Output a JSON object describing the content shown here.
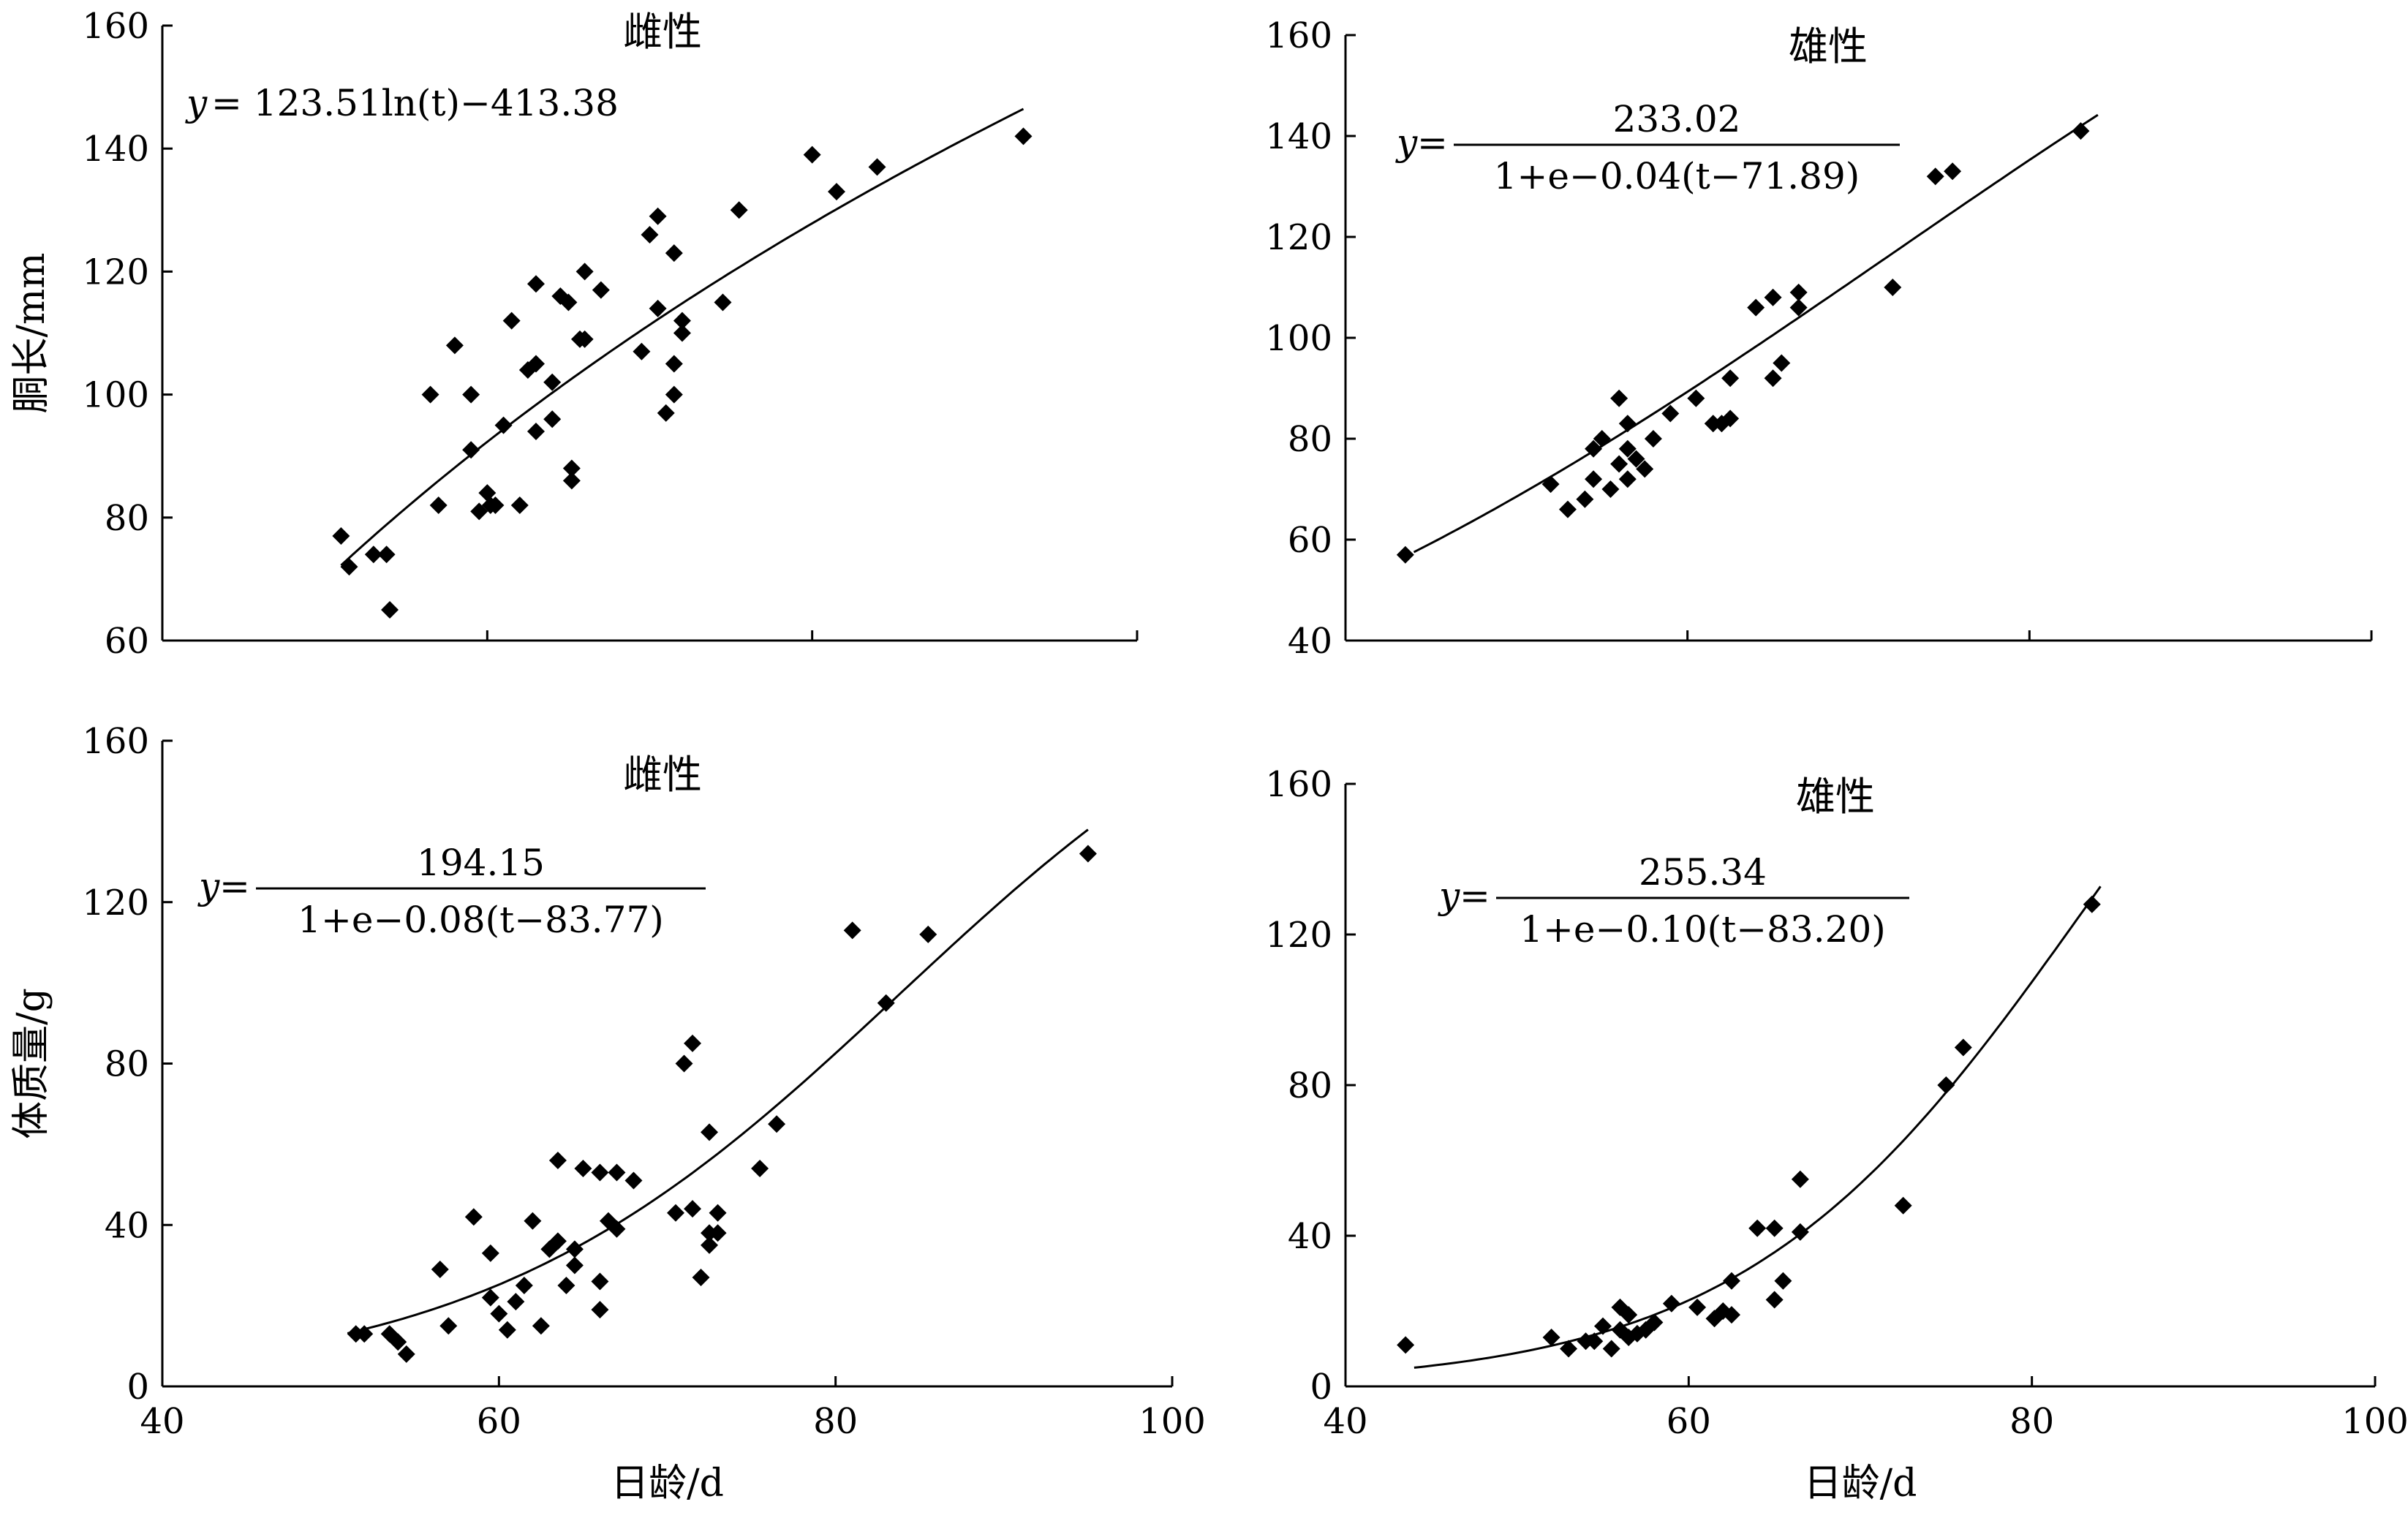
{
  "chart_data": [
    {
      "type": "scatter",
      "title": "雌性",
      "xlabel": "",
      "ylabel": "胴长/mm",
      "xlim": [
        40,
        100
      ],
      "ylim": [
        60,
        160
      ],
      "xticks": [],
      "yticks": [
        "60",
        "80",
        "100",
        "120",
        "140",
        "160"
      ],
      "equation": {
        "lhs": "y",
        "text": "= 123.51ln(t)−413.38"
      },
      "fit": {
        "model": "log",
        "a": 123.51,
        "b": -413.38,
        "t_range": [
          51,
          93
        ]
      },
      "points": [
        [
          51,
          77
        ],
        [
          51.5,
          72
        ],
        [
          53,
          74
        ],
        [
          53.8,
          74
        ],
        [
          54,
          65
        ],
        [
          56.5,
          100
        ],
        [
          57,
          82
        ],
        [
          58,
          108
        ],
        [
          59,
          100
        ],
        [
          59,
          91
        ],
        [
          59.5,
          81
        ],
        [
          60,
          84
        ],
        [
          60.2,
          82
        ],
        [
          60.5,
          82
        ],
        [
          61,
          95
        ],
        [
          61.5,
          112
        ],
        [
          62,
          82
        ],
        [
          62.5,
          104
        ],
        [
          63,
          105
        ],
        [
          63,
          94
        ],
        [
          63,
          118
        ],
        [
          64,
          102
        ],
        [
          64,
          96
        ],
        [
          64.5,
          116
        ],
        [
          65,
          115
        ],
        [
          65.2,
          88
        ],
        [
          65.2,
          86
        ],
        [
          65.7,
          109
        ],
        [
          66,
          109
        ],
        [
          66,
          120
        ],
        [
          67,
          117
        ],
        [
          69.5,
          107
        ],
        [
          70,
          126
        ],
        [
          70.5,
          114
        ],
        [
          70.5,
          129
        ],
        [
          71,
          97
        ],
        [
          71.5,
          123
        ],
        [
          71.5,
          100
        ],
        [
          71.5,
          105
        ],
        [
          72,
          112
        ],
        [
          72,
          110
        ],
        [
          74.5,
          115
        ],
        [
          75.5,
          130
        ],
        [
          80,
          139
        ],
        [
          81.5,
          133
        ],
        [
          84,
          137
        ],
        [
          93,
          142
        ]
      ]
    },
    {
      "type": "scatter",
      "title": "雄性",
      "xlabel": "",
      "ylabel": "",
      "xlim": [
        40,
        100
      ],
      "ylim": [
        40,
        160
      ],
      "xticks": [],
      "yticks": [
        "40",
        "60",
        "80",
        "100",
        "120",
        "140",
        "160"
      ],
      "equation": {
        "lhs": "y",
        "eq": "=",
        "numerator": "233.02",
        "denominator": "1+e−0.04(t−71.89)"
      },
      "fit": {
        "model": "logistic",
        "K": 233.02,
        "r": 0.04,
        "t0": 71.89,
        "t_range": [
          44,
          84
        ]
      },
      "points": [
        [
          43.5,
          57
        ],
        [
          52,
          71
        ],
        [
          53,
          66
        ],
        [
          54,
          68
        ],
        [
          54.5,
          72
        ],
        [
          54.5,
          78
        ],
        [
          55,
          80
        ],
        [
          55.5,
          70
        ],
        [
          56,
          88
        ],
        [
          56,
          75
        ],
        [
          56.5,
          72
        ],
        [
          56.5,
          78
        ],
        [
          56.5,
          83
        ],
        [
          57,
          76
        ],
        [
          57.5,
          74
        ],
        [
          58,
          80
        ],
        [
          59,
          85
        ],
        [
          60.5,
          88
        ],
        [
          61.5,
          83
        ],
        [
          62,
          83
        ],
        [
          62.5,
          92
        ],
        [
          62.5,
          84
        ],
        [
          64,
          106
        ],
        [
          65,
          108
        ],
        [
          65,
          92
        ],
        [
          65.5,
          95
        ],
        [
          66.5,
          106
        ],
        [
          66.5,
          109
        ],
        [
          72,
          110
        ],
        [
          74.5,
          132
        ],
        [
          75.5,
          133
        ],
        [
          83,
          141
        ]
      ]
    },
    {
      "type": "scatter",
      "title": "雌性",
      "xlabel": "日龄/d",
      "ylabel": "体质量/g",
      "xlim": [
        40,
        100
      ],
      "ylim": [
        0,
        160
      ],
      "xticks": [
        "40",
        "60",
        "80",
        "100"
      ],
      "yticks": [
        "0",
        "40",
        "80",
        "120",
        "160"
      ],
      "equation": {
        "lhs": "y",
        "eq": "=",
        "numerator": "194.15",
        "denominator": "1+e−0.08(t−83.77)"
      },
      "fit": {
        "model": "logistic",
        "K": 194.15,
        "r": 0.08,
        "t0": 83.77,
        "t_range": [
          51,
          95
        ]
      },
      "points": [
        [
          51.5,
          13
        ],
        [
          52,
          13
        ],
        [
          53.5,
          13
        ],
        [
          54,
          11
        ],
        [
          54.5,
          8
        ],
        [
          56.5,
          29
        ],
        [
          57,
          15
        ],
        [
          58.5,
          42
        ],
        [
          59.5,
          33
        ],
        [
          59.5,
          22
        ],
        [
          60,
          18
        ],
        [
          60.5,
          14
        ],
        [
          61,
          21
        ],
        [
          61.5,
          25
        ],
        [
          62,
          41
        ],
        [
          62.5,
          15
        ],
        [
          63,
          34
        ],
        [
          63.5,
          56
        ],
        [
          63.5,
          36
        ],
        [
          64,
          25
        ],
        [
          64.5,
          34
        ],
        [
          64.5,
          30
        ],
        [
          65,
          54
        ],
        [
          66,
          53
        ],
        [
          66,
          26
        ],
        [
          66,
          19
        ],
        [
          66.5,
          41
        ],
        [
          67,
          53
        ],
        [
          67,
          39
        ],
        [
          68,
          51
        ],
        [
          70.5,
          43
        ],
        [
          71,
          80
        ],
        [
          71.5,
          85
        ],
        [
          71.5,
          44
        ],
        [
          72,
          27
        ],
        [
          72.5,
          63
        ],
        [
          72.5,
          38
        ],
        [
          72.5,
          35
        ],
        [
          73,
          43
        ],
        [
          73,
          38
        ],
        [
          75.5,
          54
        ],
        [
          76.5,
          65
        ],
        [
          81,
          113
        ],
        [
          83,
          95
        ],
        [
          85.5,
          112
        ],
        [
          95,
          132
        ]
      ]
    },
    {
      "type": "scatter",
      "title": "雄性",
      "xlabel": "日龄/d",
      "ylabel": "",
      "xlim": [
        40,
        100
      ],
      "ylim": [
        0,
        160
      ],
      "xticks": [
        "40",
        "60",
        "80",
        "100"
      ],
      "yticks": [
        "0",
        "40",
        "80",
        "120",
        "160"
      ],
      "equation": {
        "lhs": "y",
        "eq": "=",
        "numerator": "255.34",
        "denominator": "1+e−0.10(t−83.20)"
      },
      "fit": {
        "model": "logistic",
        "K": 255.34,
        "r": 0.1,
        "t0": 83.2,
        "t_range": [
          44,
          84
        ]
      },
      "points": [
        [
          43.5,
          11
        ],
        [
          52,
          13
        ],
        [
          53,
          10
        ],
        [
          54,
          12
        ],
        [
          54.5,
          12
        ],
        [
          55,
          16
        ],
        [
          55.5,
          10
        ],
        [
          56,
          21
        ],
        [
          56,
          15
        ],
        [
          56.5,
          13
        ],
        [
          56.5,
          19
        ],
        [
          57,
          14
        ],
        [
          57.5,
          15
        ],
        [
          58,
          17
        ],
        [
          59,
          22
        ],
        [
          60.5,
          21
        ],
        [
          61.5,
          18
        ],
        [
          62,
          20
        ],
        [
          62.5,
          28
        ],
        [
          62.5,
          19
        ],
        [
          64,
          42
        ],
        [
          65,
          42
        ],
        [
          65,
          23
        ],
        [
          65.5,
          28
        ],
        [
          66.5,
          55
        ],
        [
          66.5,
          41
        ],
        [
          72.5,
          48
        ],
        [
          75,
          80
        ],
        [
          76,
          90
        ],
        [
          83.5,
          128
        ]
      ]
    }
  ]
}
